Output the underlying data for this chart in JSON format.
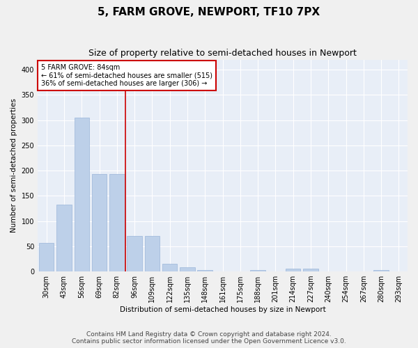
{
  "title": "5, FARM GROVE, NEWPORT, TF10 7PX",
  "subtitle": "Size of property relative to semi-detached houses in Newport",
  "xlabel": "Distribution of semi-detached houses by size in Newport",
  "ylabel": "Number of semi-detached properties",
  "annotation_text_line1": "5 FARM GROVE: 84sqm",
  "annotation_text_line2": "← 61% of semi-detached houses are smaller (515)",
  "annotation_text_line3": "36% of semi-detached houses are larger (306) →",
  "footer_line1": "Contains HM Land Registry data © Crown copyright and database right 2024.",
  "footer_line2": "Contains public sector information licensed under the Open Government Licence v3.0.",
  "bar_color": "#bdd0e9",
  "bar_edge_color": "#9ab5d9",
  "vline_color": "#cc0000",
  "annotation_box_edgecolor": "#cc0000",
  "background_color": "#e8eef7",
  "grid_color": "#ffffff",
  "fig_background": "#f0f0f0",
  "categories": [
    "30sqm",
    "43sqm",
    "56sqm",
    "69sqm",
    "82sqm",
    "96sqm",
    "109sqm",
    "122sqm",
    "135sqm",
    "148sqm",
    "161sqm",
    "175sqm",
    "188sqm",
    "201sqm",
    "214sqm",
    "227sqm",
    "240sqm",
    "254sqm",
    "267sqm",
    "280sqm",
    "293sqm"
  ],
  "values": [
    57,
    133,
    305,
    193,
    193,
    70,
    70,
    15,
    8,
    3,
    0,
    0,
    3,
    0,
    5,
    5,
    0,
    0,
    0,
    3,
    0
  ],
  "ylim": [
    0,
    420
  ],
  "yticks": [
    0,
    50,
    100,
    150,
    200,
    250,
    300,
    350,
    400
  ],
  "vline_x_index": 4,
  "title_fontsize": 11,
  "subtitle_fontsize": 9,
  "axis_label_fontsize": 7.5,
  "tick_fontsize": 7,
  "annotation_fontsize": 7,
  "footer_fontsize": 6.5
}
